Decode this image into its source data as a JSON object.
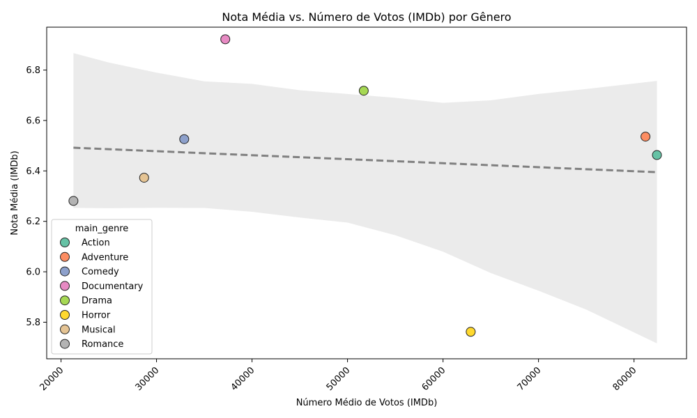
{
  "chart_data": {
    "type": "scatter",
    "title": "Nota Média vs. Número de Votos (IMDb) por Gênero",
    "xlabel": "Número Médio de Votos (IMDb)",
    "ylabel": "Nota Média (IMDb)",
    "xlim": [
      18500,
      85500
    ],
    "ylim": [
      5.655,
      6.97
    ],
    "x_ticks": [
      20000,
      30000,
      40000,
      50000,
      60000,
      70000,
      80000
    ],
    "y_ticks": [
      5.8,
      6.0,
      6.2,
      6.4,
      6.6,
      6.8
    ],
    "legend": {
      "title": "main_genre",
      "placement": "lower-left"
    },
    "series": [
      {
        "name": "Action",
        "x": 82400,
        "y": 6.463,
        "color": "#66c2a5"
      },
      {
        "name": "Adventure",
        "x": 81200,
        "y": 6.536,
        "color": "#fc8d62"
      },
      {
        "name": "Comedy",
        "x": 32900,
        "y": 6.526,
        "color": "#8da0cb"
      },
      {
        "name": "Documentary",
        "x": 37200,
        "y": 6.922,
        "color": "#e78ac3"
      },
      {
        "name": "Drama",
        "x": 51700,
        "y": 6.718,
        "color": "#a6d854"
      },
      {
        "name": "Horror",
        "x": 62900,
        "y": 5.762,
        "color": "#ffd92f"
      },
      {
        "name": "Musical",
        "x": 28700,
        "y": 6.373,
        "color": "#e5c494"
      },
      {
        "name": "Romance",
        "x": 21300,
        "y": 6.281,
        "color": "#b3b3b3"
      }
    ],
    "regression": {
      "x": [
        21300,
        82400
      ],
      "y": [
        6.492,
        6.395
      ],
      "color": "#808080",
      "style": "dashed",
      "ci_band": {
        "x": [
          21300,
          25000,
          30000,
          35000,
          40000,
          45000,
          50000,
          55000,
          60000,
          65000,
          70000,
          75000,
          82400
        ],
        "upper": [
          6.867,
          6.83,
          6.79,
          6.755,
          6.745,
          6.72,
          6.705,
          6.69,
          6.67,
          6.68,
          6.705,
          6.725,
          6.757
        ],
        "lower": [
          6.253,
          6.252,
          6.254,
          6.253,
          6.238,
          6.215,
          6.195,
          6.145,
          6.08,
          5.995,
          5.925,
          5.85,
          5.716
        ],
        "color": "#ebebeb"
      }
    }
  }
}
